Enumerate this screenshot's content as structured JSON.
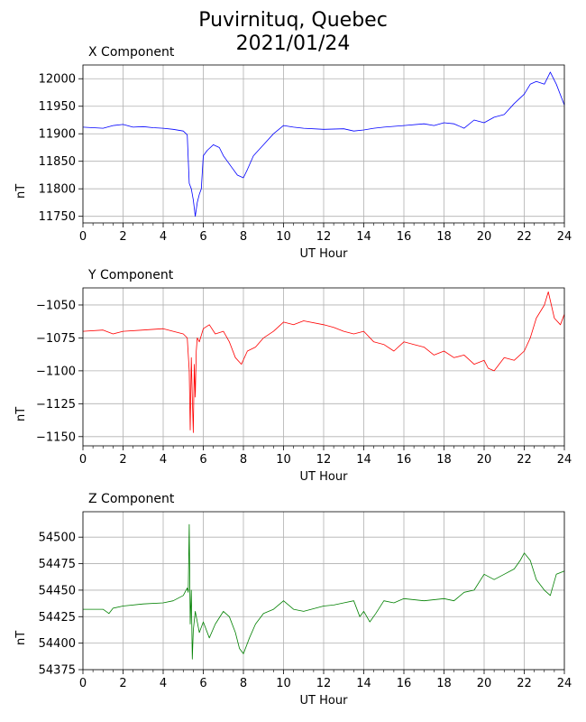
{
  "figure": {
    "title_line1": "Puvirnituq, Quebec",
    "title_line2": "2021/01/24"
  },
  "chart_data": [
    {
      "type": "line",
      "title": "X Component",
      "xlabel": "UT Hour",
      "ylabel": "nT",
      "xlim": [
        0,
        24
      ],
      "ylim": [
        11738,
        12025
      ],
      "xticks": [
        0,
        2,
        4,
        6,
        8,
        10,
        12,
        14,
        16,
        18,
        20,
        22,
        24
      ],
      "yticks": [
        11750,
        11800,
        11850,
        11900,
        11950,
        12000
      ],
      "grid": true,
      "color": "#0000ff",
      "x": [
        0,
        1,
        1.5,
        2,
        2.5,
        3,
        3.5,
        4,
        4.5,
        5,
        5.2,
        5.3,
        5.4,
        5.5,
        5.6,
        5.7,
        5.8,
        5.9,
        6,
        6.2,
        6.5,
        6.8,
        7.0,
        7.2,
        7.4,
        7.7,
        8.0,
        8.2,
        8.5,
        9,
        9.5,
        10,
        10.5,
        11,
        12,
        13,
        13.5,
        14,
        14.5,
        15,
        16,
        17,
        17.5,
        18,
        18.5,
        19,
        19.5,
        20,
        20.5,
        21,
        21.5,
        22,
        22.3,
        22.6,
        23,
        23.3,
        23.6,
        24
      ],
      "values": [
        11912,
        11910,
        11915,
        11917,
        11912,
        11913,
        11911,
        11910,
        11908,
        11905,
        11898,
        11810,
        11800,
        11780,
        11750,
        11775,
        11790,
        11800,
        11860,
        11870,
        11880,
        11875,
        11860,
        11850,
        11840,
        11825,
        11820,
        11835,
        11860,
        11880,
        11900,
        11915,
        11912,
        11910,
        11908,
        11909,
        11905,
        11907,
        11910,
        11912,
        11915,
        11918,
        11915,
        11920,
        11918,
        11910,
        11925,
        11920,
        11930,
        11935,
        11955,
        11972,
        11990,
        11995,
        11990,
        12012,
        11990,
        11952
      ]
    },
    {
      "type": "line",
      "title": "Y Component",
      "xlabel": "UT Hour",
      "ylabel": "nT",
      "xlim": [
        0,
        24
      ],
      "ylim": [
        -1157,
        -1037
      ],
      "xticks": [
        0,
        2,
        4,
        6,
        8,
        10,
        12,
        14,
        16,
        18,
        20,
        22,
        24
      ],
      "yticks": [
        -1050,
        -1075,
        -1100,
        -1125,
        -1150
      ],
      "grid": true,
      "color": "#ff0000",
      "x": [
        0,
        1,
        1.5,
        2,
        3,
        4,
        4.5,
        5,
        5.2,
        5.3,
        5.35,
        5.4,
        5.45,
        5.5,
        5.55,
        5.6,
        5.65,
        5.7,
        5.8,
        6.0,
        6.3,
        6.6,
        7.0,
        7.3,
        7.6,
        7.9,
        8.2,
        8.6,
        9,
        9.5,
        10,
        10.5,
        11,
        12,
        12.5,
        13,
        13.5,
        14,
        14.5,
        15,
        15.5,
        16,
        16.5,
        17,
        17.5,
        18,
        18.5,
        19,
        19.5,
        20,
        20.2,
        20.5,
        20.7,
        21,
        21.5,
        22,
        22.3,
        22.6,
        23,
        23.2,
        23.5,
        23.8,
        24
      ],
      "values": [
        -1070,
        -1069,
        -1072,
        -1070,
        -1069,
        -1068,
        -1070,
        -1072,
        -1075,
        -1100,
        -1145,
        -1090,
        -1120,
        -1147,
        -1095,
        -1120,
        -1085,
        -1075,
        -1078,
        -1068,
        -1065,
        -1072,
        -1070,
        -1078,
        -1090,
        -1095,
        -1085,
        -1082,
        -1075,
        -1070,
        -1063,
        -1065,
        -1062,
        -1065,
        -1067,
        -1070,
        -1072,
        -1070,
        -1078,
        -1080,
        -1085,
        -1078,
        -1080,
        -1082,
        -1088,
        -1085,
        -1090,
        -1088,
        -1095,
        -1092,
        -1098,
        -1100,
        -1096,
        -1090,
        -1092,
        -1085,
        -1075,
        -1060,
        -1050,
        -1040,
        -1060,
        -1065,
        -1057
      ]
    },
    {
      "type": "line",
      "title": "Z Component",
      "xlabel": "UT Hour",
      "ylabel": "nT",
      "xlim": [
        0,
        24
      ],
      "ylim": [
        54375,
        54524
      ],
      "xticks": [
        0,
        2,
        4,
        6,
        8,
        10,
        12,
        14,
        16,
        18,
        20,
        22,
        24
      ],
      "yticks": [
        54375,
        54400,
        54425,
        54450,
        54475,
        54500
      ],
      "grid": true,
      "color": "#008000",
      "x": [
        0,
        1,
        1.3,
        1.5,
        2,
        3,
        4,
        4.5,
        5,
        5.2,
        5.25,
        5.3,
        5.35,
        5.4,
        5.45,
        5.5,
        5.6,
        5.8,
        6.0,
        6.3,
        6.6,
        7.0,
        7.3,
        7.6,
        7.8,
        8.0,
        8.3,
        8.6,
        9,
        9.5,
        10,
        10.5,
        11,
        12,
        12.5,
        13,
        13.5,
        13.8,
        14,
        14.3,
        14.6,
        15,
        15.5,
        16,
        17,
        18,
        18.5,
        19,
        19.5,
        20,
        20.5,
        21,
        21.5,
        21.8,
        22,
        22.3,
        22.6,
        23,
        23.3,
        23.6,
        24
      ],
      "values": [
        54432,
        54432,
        54428,
        54433,
        54435,
        54437,
        54438,
        54440,
        54445,
        54452,
        54448,
        54512,
        54418,
        54450,
        54385,
        54412,
        54430,
        54410,
        54420,
        54405,
        54418,
        54430,
        54425,
        54410,
        54395,
        54390,
        54405,
        54418,
        54428,
        54432,
        54440,
        54432,
        54430,
        54435,
        54436,
        54438,
        54440,
        54425,
        54430,
        54420,
        54428,
        54440,
        54438,
        54442,
        54440,
        54442,
        54440,
        54448,
        54450,
        54465,
        54460,
        54465,
        54470,
        54478,
        54485,
        54478,
        54460,
        54450,
        54445,
        54465,
        54468
      ]
    }
  ]
}
